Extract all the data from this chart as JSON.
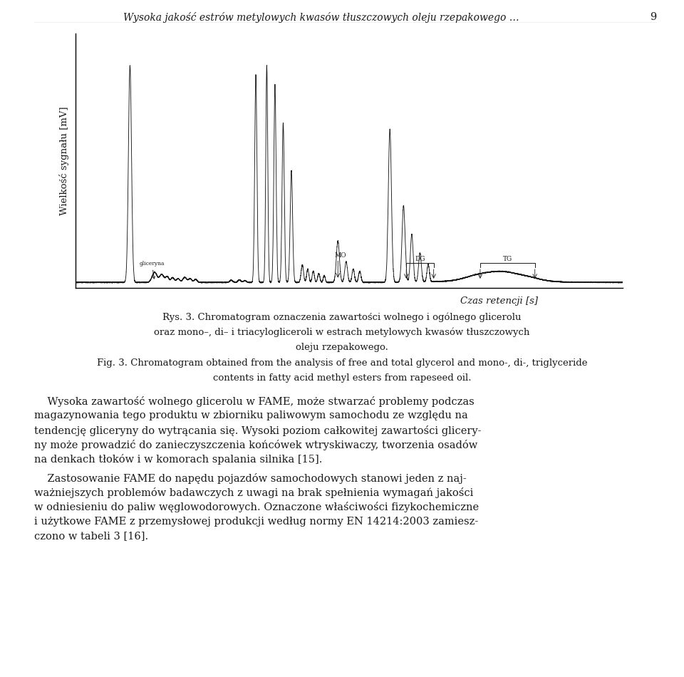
{
  "page_title": "Wysoka jakość estrów metylowych kwasów tłuszczowych oleju rzepakowego …",
  "page_number": "9",
  "ylabel": "Wielkość sygnału [mV]",
  "xlabel": "Czas retencji [s]",
  "caption_pl_1": "Rys. 3. Chromatogram oznaczenia zawartości wolnego i ogólnego glicerolu",
  "caption_pl_2": "oraz mono–, di– i triacylogliceroli w estrach metylowych kwasów tłuszczowych",
  "caption_pl_3": "oleju rzepakowego.",
  "caption_en_1": "Fig. 3. Chromatogram obtained from the analysis of free and total glycerol and mono-, di-, triglyceride",
  "caption_en_2": "contents in fatty acid methyl esters from rapeseed oil.",
  "body_para1_lines": [
    "    Wysoka zawartość wolnego glicerolu w FAME, może stwarzać problemy podczas",
    "magazynowania tego produktu w zbiorniku paliwowym samochodu ze względu na",
    "tendencję gliceryny do wytrącania się. Wysoki poziom całkowitej zawartości glicery-",
    "ny może prowadzić do zanieczyszczenia końcówek wtryskiwaczy, tworzenia osadów",
    "na denkach tłoków i w komorach spalania silnika [15]."
  ],
  "body_para2_lines": [
    "    Zastosowanie FAME do napędu pojazdów samochodowych stanowi jeden z naj-",
    "ważniejszych problemów badawczych z uwagi na brak spełnienia wymagań jakości",
    "w odniesieniu do paliw węglowodorowych. Oznaczone właściwości fizykochemiczne",
    "i użytkowe FAME z przemysłowej produkcji według normy EN 14214:2003 zamiesz-",
    "czono w tabeli 3 [16]."
  ],
  "background_color": "#ffffff",
  "line_color": "#1a1a1a",
  "text_color": "#1a1a1a",
  "annotation_label_gliceryna": "gliceryna",
  "annotation_label_MO": "MO",
  "annotation_label_DG": "DG",
  "annotation_label_TG": "TG"
}
